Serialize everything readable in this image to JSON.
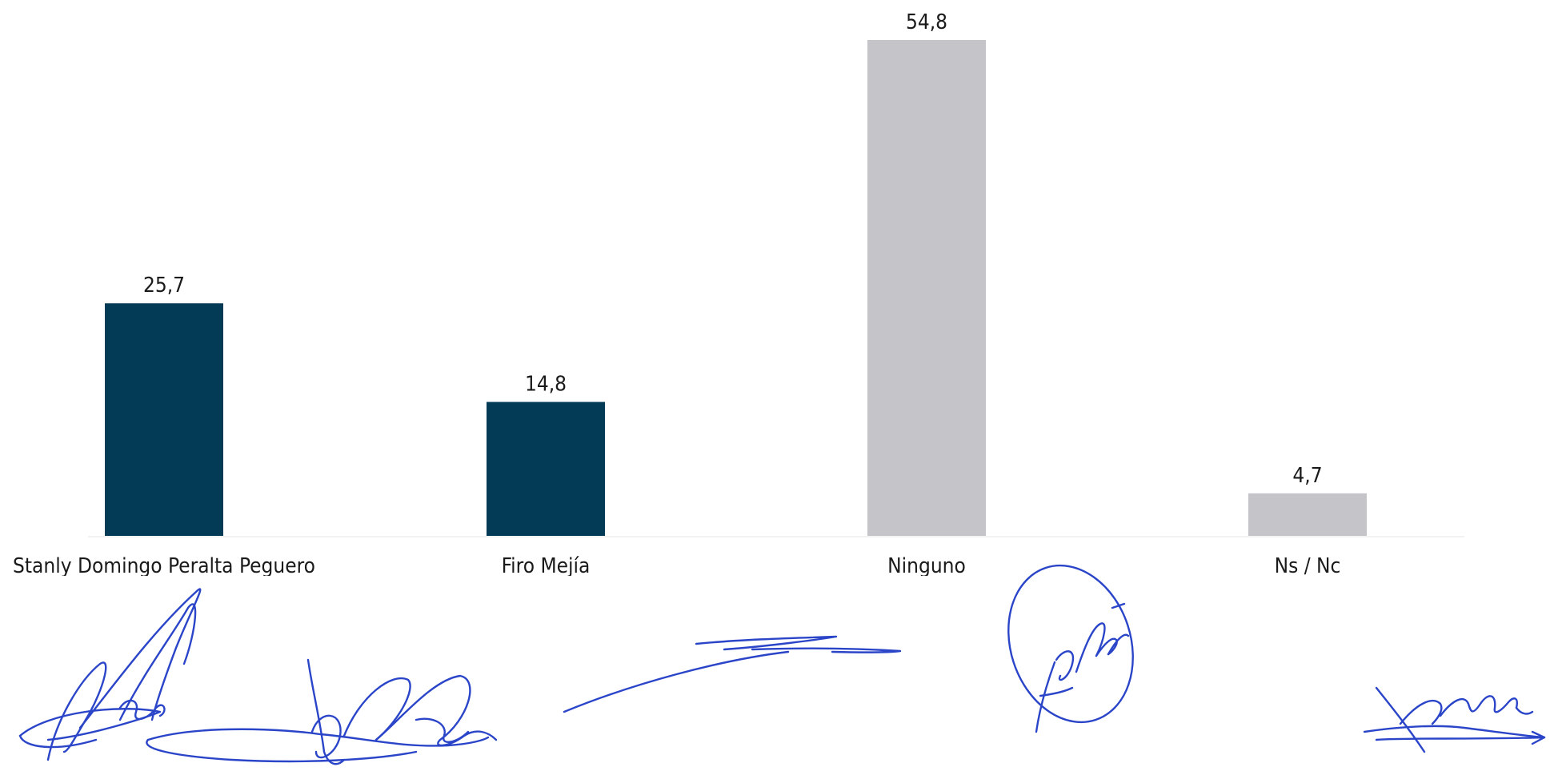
{
  "chart_data": {
    "type": "bar",
    "categories": [
      "Stanly Domingo Peralta Peguero",
      "Firo Mejía",
      "Ninguno",
      "Ns / Nc"
    ],
    "values": [
      25.7,
      14.8,
      54.8,
      4.7
    ],
    "value_labels": [
      "25,7",
      "14,8",
      "54,8",
      "4,7"
    ],
    "ylim": [
      0,
      54.8
    ],
    "grid": false,
    "bar_colors": [
      "#033a55",
      "#033a55",
      "#c4c4c9",
      "#c4c4c9"
    ]
  },
  "signatures": [
    {
      "name": "signature-1-icon"
    },
    {
      "name": "signature-2-icon"
    },
    {
      "name": "signature-3-icon"
    },
    {
      "name": "signature-4-icon"
    },
    {
      "name": "signature-5-icon"
    }
  ]
}
